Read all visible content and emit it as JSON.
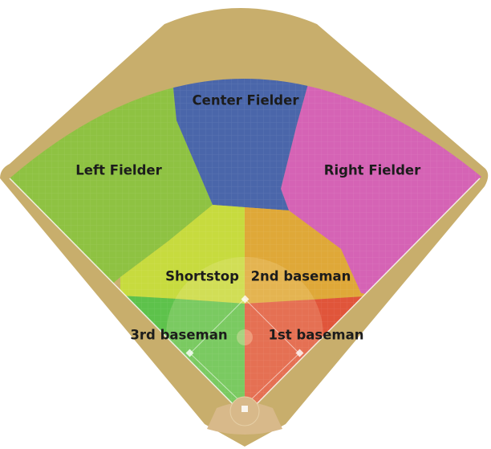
{
  "zones": [
    {
      "id": "center-fielder",
      "label": "Center Fielder",
      "color": "#4a66aa"
    },
    {
      "id": "left-fielder",
      "label": "Left Fielder",
      "color": "#8ec242"
    },
    {
      "id": "right-fielder",
      "label": "Right Fielder",
      "color": "#d563b5"
    },
    {
      "id": "shortstop",
      "label": "Shortstop",
      "color": "#c7db3e"
    },
    {
      "id": "second-baseman",
      "label": "2nd baseman",
      "color": "#dfa838"
    },
    {
      "id": "third-baseman",
      "label": "3rd baseman",
      "color": "#5dc24b"
    },
    {
      "id": "first-baseman",
      "label": "1st baseman",
      "color": "#e0553a"
    }
  ],
  "field": {
    "warning_track_color": "#c8ae6c",
    "infield_dirt_color": "#d8b98a",
    "line_color": "#ffffff"
  }
}
